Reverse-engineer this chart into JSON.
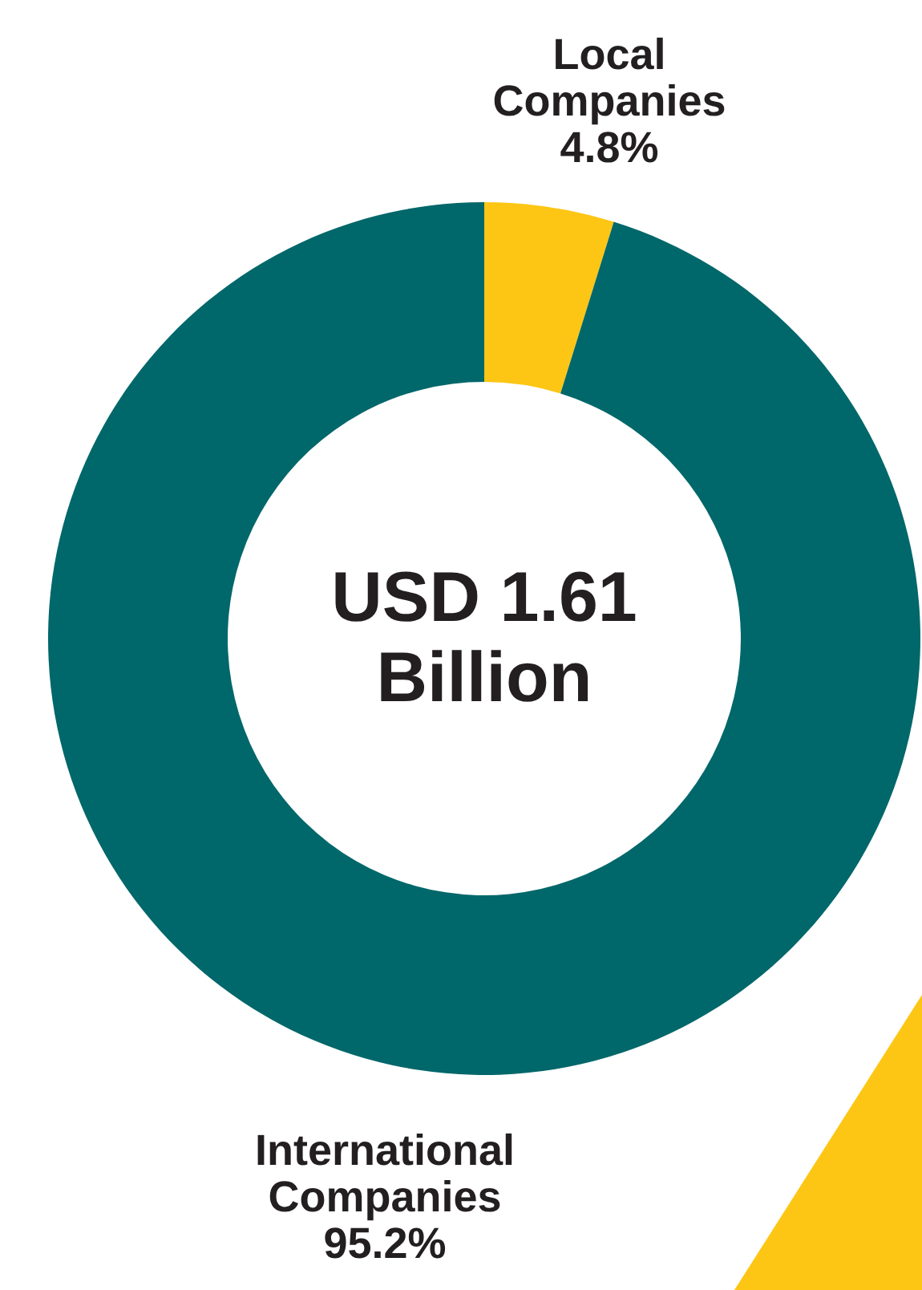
{
  "chart_data": {
    "type": "donut",
    "categories": [
      "Local Companies",
      "International Companies"
    ],
    "values": [
      4.8,
      95.2
    ],
    "colors": [
      "#fdc615",
      "#00676a"
    ],
    "value_labels": [
      "4.8%",
      "95.2%"
    ],
    "annotations": [
      "USD 1.61 Billion"
    ]
  }
}
